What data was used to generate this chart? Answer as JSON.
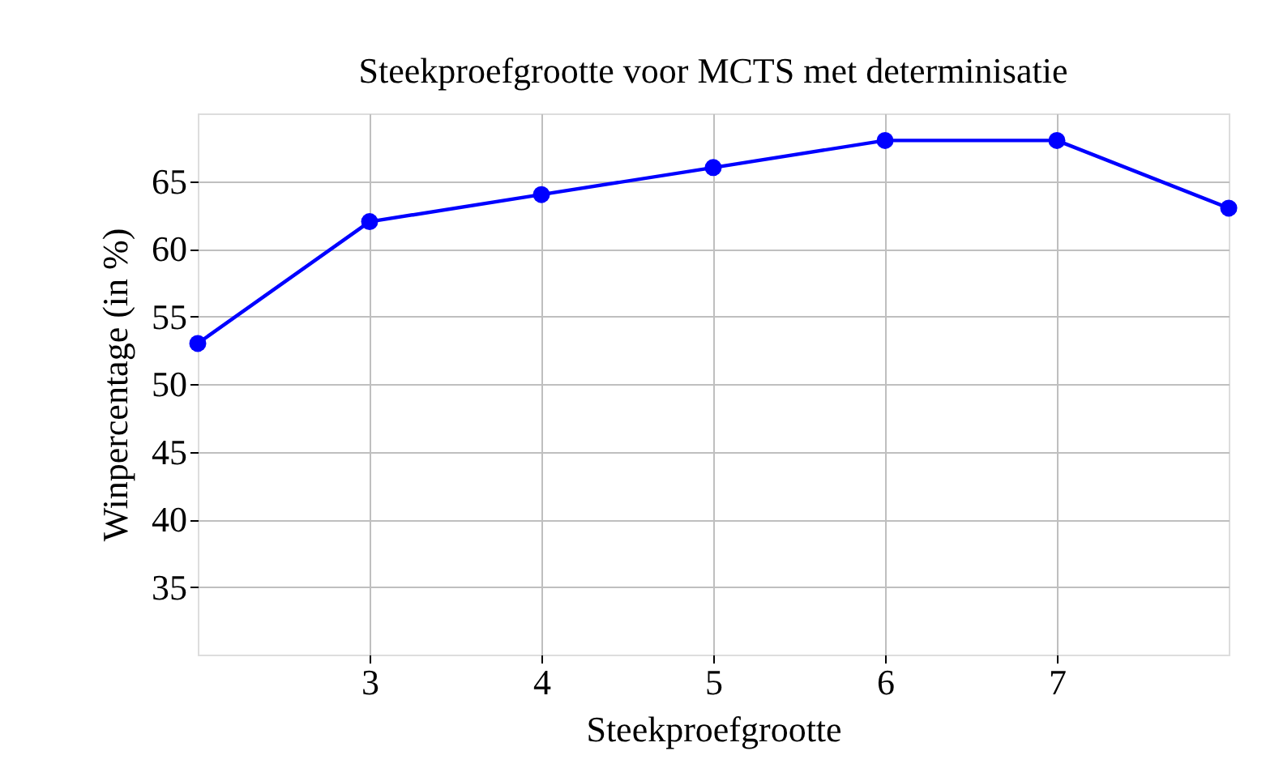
{
  "chart_data": {
    "type": "line",
    "title": "Steekproefgrootte voor MCTS met determinisatie",
    "xlabel": "Steekproefgrootte",
    "ylabel": "Winpercentage (in %)",
    "x": [
      2,
      3,
      4,
      5,
      6,
      7,
      8
    ],
    "series": [
      {
        "color": "#0000ff",
        "values": [
          53,
          62,
          64,
          66,
          68,
          68,
          63
        ]
      }
    ],
    "xlim": [
      2,
      8
    ],
    "xticks": [
      3,
      4,
      5,
      6,
      7
    ],
    "ylim": [
      30,
      70
    ],
    "yticks": [
      35,
      40,
      45,
      50,
      55,
      60,
      65
    ],
    "grid": true,
    "marker": "circle",
    "line_style": "solid"
  }
}
